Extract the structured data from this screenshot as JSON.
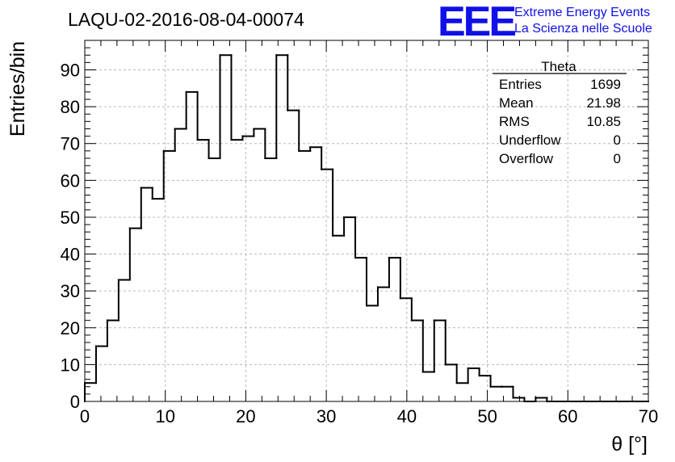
{
  "title": "LAQU-02-2016-08-04-00074",
  "logo": {
    "mark": "EEE",
    "line1": "Extreme Energy Events",
    "line2": "La Scienza nelle Scuole",
    "color": "#1010e8"
  },
  "stats": {
    "title": "Theta",
    "rows": [
      {
        "label": "Entries",
        "value": "1699"
      },
      {
        "label": "Mean",
        "value": "21.98"
      },
      {
        "label": "RMS",
        "value": "10.85"
      },
      {
        "label": "Underflow",
        "value": "0"
      },
      {
        "label": "Overflow",
        "value": "0"
      }
    ]
  },
  "chart_data": {
    "type": "bar",
    "histogram": true,
    "title": "LAQU-02-2016-08-04-00074",
    "xlabel": "θ [°]",
    "ylabel": "Entries/bin",
    "xlim": [
      0,
      70
    ],
    "ylim": [
      0,
      98
    ],
    "x_ticks": [
      0,
      10,
      20,
      30,
      40,
      50,
      60,
      70
    ],
    "y_ticks": [
      0,
      10,
      20,
      30,
      40,
      50,
      60,
      70,
      80,
      90
    ],
    "grid": true,
    "grid_style": "dashed",
    "bin_width": 1.4,
    "bin_edges_start": 0,
    "values": [
      5,
      15,
      22,
      33,
      47,
      58,
      55,
      68,
      74,
      84,
      71,
      66,
      94,
      71,
      72,
      74,
      66,
      94,
      79,
      68,
      69,
      63,
      45,
      50,
      39,
      26,
      31,
      39,
      28,
      22,
      8,
      22,
      10,
      5,
      9,
      7,
      4,
      4,
      1,
      0,
      1,
      0,
      0,
      0,
      0,
      0,
      0,
      0,
      0,
      0
    ]
  }
}
